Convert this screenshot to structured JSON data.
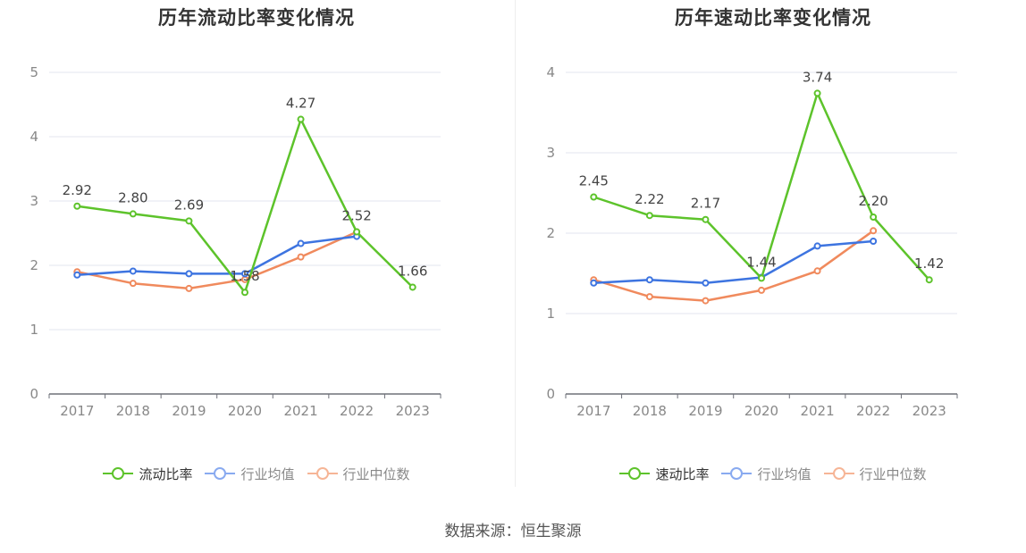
{
  "source": "数据来源：恒生聚源",
  "colors": {
    "main": "#5dc32b",
    "avg": "#3d74e0",
    "median": "#f08a5d"
  },
  "chart_data": [
    {
      "type": "line",
      "title": "历年流动比率变化情况",
      "x": [
        "2017",
        "2018",
        "2019",
        "2020",
        "2021",
        "2022",
        "2023"
      ],
      "ylim": [
        0,
        5
      ],
      "yticks": [
        0,
        1,
        2,
        3,
        4,
        5
      ],
      "grid": true,
      "legend_position": "bottom",
      "series": [
        {
          "name": "流动比率",
          "color": "#5dc32b",
          "values": [
            2.92,
            2.8,
            2.69,
            1.58,
            4.27,
            2.52,
            1.66
          ],
          "labels": [
            "2.92",
            "2.80",
            "2.69",
            "1.58",
            "4.27",
            "2.52",
            "1.66"
          ],
          "legend_ring": "#5dc32b"
        },
        {
          "name": "行业均值",
          "color": "#3d74e0",
          "values": [
            1.85,
            1.91,
            1.87,
            1.87,
            2.34,
            2.45,
            null
          ],
          "legend_ring": "#89aaf0"
        },
        {
          "name": "行业中位数",
          "color": "#f08a5d",
          "values": [
            1.9,
            1.72,
            1.64,
            1.78,
            2.13,
            2.52,
            null
          ],
          "legend_ring": "#f6b596"
        }
      ]
    },
    {
      "type": "line",
      "title": "历年速动比率变化情况",
      "x": [
        "2017",
        "2018",
        "2019",
        "2020",
        "2021",
        "2022",
        "2023"
      ],
      "ylim": [
        0,
        4
      ],
      "yticks": [
        0,
        1,
        2,
        3,
        4
      ],
      "grid": true,
      "legend_position": "bottom",
      "series": [
        {
          "name": "速动比率",
          "color": "#5dc32b",
          "values": [
            2.45,
            2.22,
            2.17,
            1.44,
            3.74,
            2.2,
            1.42
          ],
          "labels": [
            "2.45",
            "2.22",
            "2.17",
            "1.44",
            "3.74",
            "2.20",
            "1.42"
          ],
          "legend_ring": "#5dc32b"
        },
        {
          "name": "行业均值",
          "color": "#3d74e0",
          "values": [
            1.38,
            1.42,
            1.38,
            1.45,
            1.84,
            1.9,
            null
          ],
          "legend_ring": "#89aaf0"
        },
        {
          "name": "行业中位数",
          "color": "#f08a5d",
          "values": [
            1.42,
            1.21,
            1.16,
            1.29,
            1.53,
            2.03,
            null
          ],
          "legend_ring": "#f6b596"
        }
      ]
    }
  ]
}
